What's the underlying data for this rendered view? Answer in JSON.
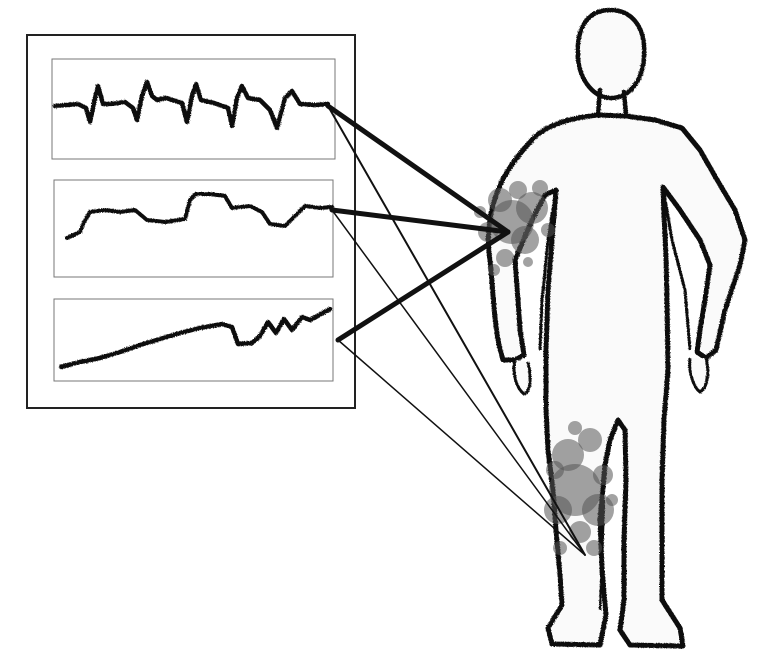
{
  "colors": {
    "ink": "#111111",
    "panel_border": "#222222",
    "plot_border": "#777777",
    "splatter": "#555555",
    "body_fill": "#fafafa"
  },
  "diagram": {
    "sensor_sites": [
      {
        "name": "shoulder"
      },
      {
        "name": "knee"
      }
    ],
    "signals": [
      {
        "name": "oscillating-waveform"
      },
      {
        "name": "step-waveform"
      },
      {
        "name": "rising-trend-waveform"
      }
    ]
  }
}
